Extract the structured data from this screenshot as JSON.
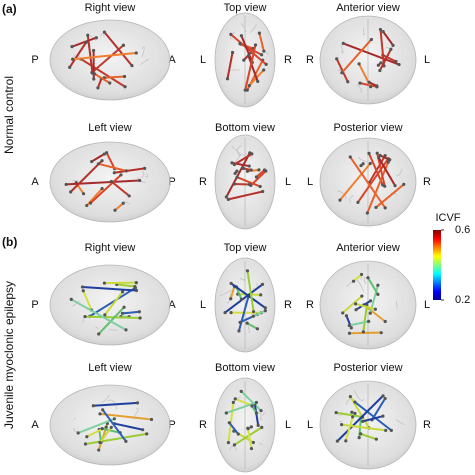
{
  "panels": [
    {
      "label": "(a)",
      "group": "Normal control",
      "views": [
        {
          "title": "Right view",
          "left": "P",
          "right": "A"
        },
        {
          "title": "Top view",
          "left": "L",
          "right": "R"
        },
        {
          "title": "Anterior  view",
          "left": "R",
          "right": "L"
        },
        {
          "title": "Left view",
          "left": "A",
          "right": "P"
        },
        {
          "title": "Bottom view",
          "left": "R",
          "right": "L"
        },
        {
          "title": "Posterior view",
          "left": "L",
          "right": "R"
        }
      ]
    },
    {
      "label": "(b)",
      "group": "Juvenile myoclonic epilepsy",
      "views": [
        {
          "title": "Right view",
          "left": "P",
          "right": "A"
        },
        {
          "title": "Top view",
          "left": "L",
          "right": "R"
        },
        {
          "title": "Anterior  view",
          "left": "R",
          "right": "L"
        },
        {
          "title": "Left view",
          "left": "A",
          "right": "P"
        },
        {
          "title": "Bottom view",
          "left": "R",
          "right": "L"
        },
        {
          "title": "Posterior view",
          "left": "L",
          "right": "R"
        }
      ]
    }
  ],
  "colorbar": {
    "title": "ICVF",
    "lim": [
      0.2,
      0.6
    ],
    "ticks": [
      0.6,
      0.2
    ]
  }
}
